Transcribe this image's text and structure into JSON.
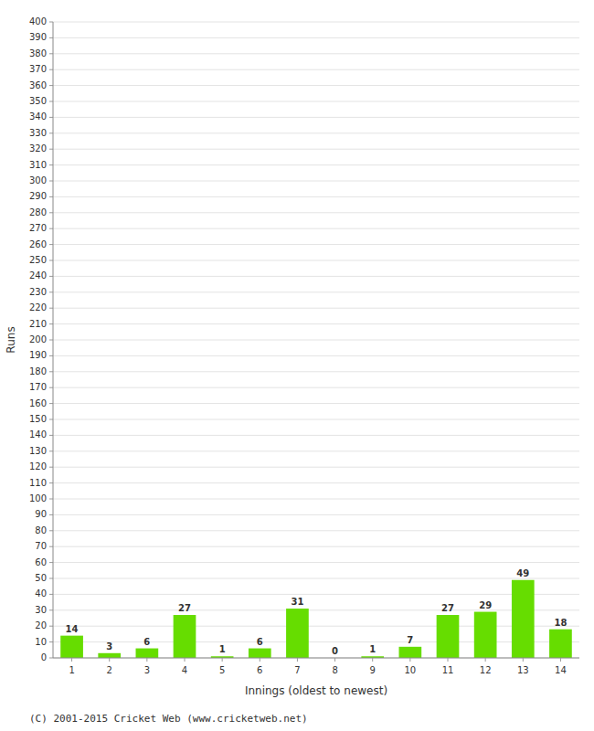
{
  "chart_data": {
    "type": "bar",
    "categories": [
      "1",
      "2",
      "3",
      "4",
      "5",
      "6",
      "7",
      "8",
      "9",
      "10",
      "11",
      "12",
      "13",
      "14"
    ],
    "values": [
      14,
      3,
      6,
      27,
      1,
      6,
      31,
      0,
      1,
      7,
      27,
      29,
      49,
      18
    ],
    "color": "#66DD00",
    "xlabel": "Innings (oldest to newest)",
    "ylabel": "Runs",
    "annotations": [
      "(C) 2001-2015 Cricket Web (www.cricketweb.net)"
    ],
    "ylim": [
      0,
      400
    ],
    "yticks": [
      0,
      10,
      20,
      30,
      40,
      50,
      60,
      70,
      80,
      90,
      100,
      110,
      120,
      130,
      140,
      150,
      160,
      170,
      180,
      190,
      200,
      210,
      220,
      230,
      240,
      250,
      260,
      270,
      280,
      290,
      300,
      310,
      320,
      330,
      340,
      350,
      360,
      370,
      380,
      390,
      400
    ],
    "grid": true,
    "data_labels": true
  }
}
